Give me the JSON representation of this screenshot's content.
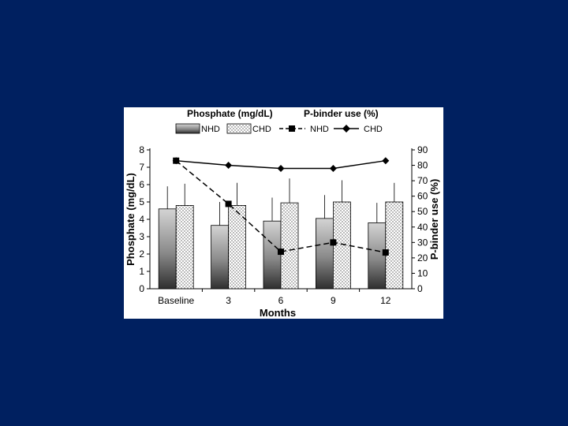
{
  "slide": {
    "background": "#002060"
  },
  "chart_data": {
    "type": "bar",
    "categories": [
      "Baseline",
      "3",
      "6",
      "9",
      "12"
    ],
    "xlabel": "Months",
    "ylabel_left": "Phosphate (mg/dL)",
    "ylabel_right": "P-binder use (%)",
    "ylim_left": [
      0,
      8
    ],
    "ylim_right": [
      0,
      90
    ],
    "yticks_left": [
      "0",
      "1",
      "2",
      "3",
      "4",
      "5",
      "6",
      "7",
      "8"
    ],
    "yticks_right": [
      "0",
      "10",
      "20",
      "30",
      "40",
      "50",
      "60",
      "70",
      "80",
      "90"
    ],
    "legend_headers": {
      "bars": "Phosphate (mg/dL)",
      "lines": "P-binder use (%)"
    },
    "bar_series": [
      {
        "name": "NHD",
        "values": [
          4.6,
          3.65,
          3.9,
          4.05,
          3.8
        ],
        "error_upper": [
          5.9,
          5.0,
          5.25,
          5.4,
          4.95
        ],
        "fill": "gradient-gray"
      },
      {
        "name": "CHD",
        "values": [
          4.8,
          4.8,
          4.95,
          5.0,
          5.0
        ],
        "error_upper": [
          6.05,
          6.1,
          6.35,
          6.25,
          6.1
        ],
        "fill": "dotted"
      }
    ],
    "line_series": [
      {
        "name": "NHD",
        "values": [
          83,
          55,
          24,
          30,
          23.5
        ],
        "marker": "square",
        "style": "dashed"
      },
      {
        "name": "CHD",
        "values": [
          83,
          80,
          78,
          78,
          83
        ],
        "marker": "diamond",
        "style": "solid"
      }
    ],
    "grid": false,
    "legend_position": "top"
  }
}
